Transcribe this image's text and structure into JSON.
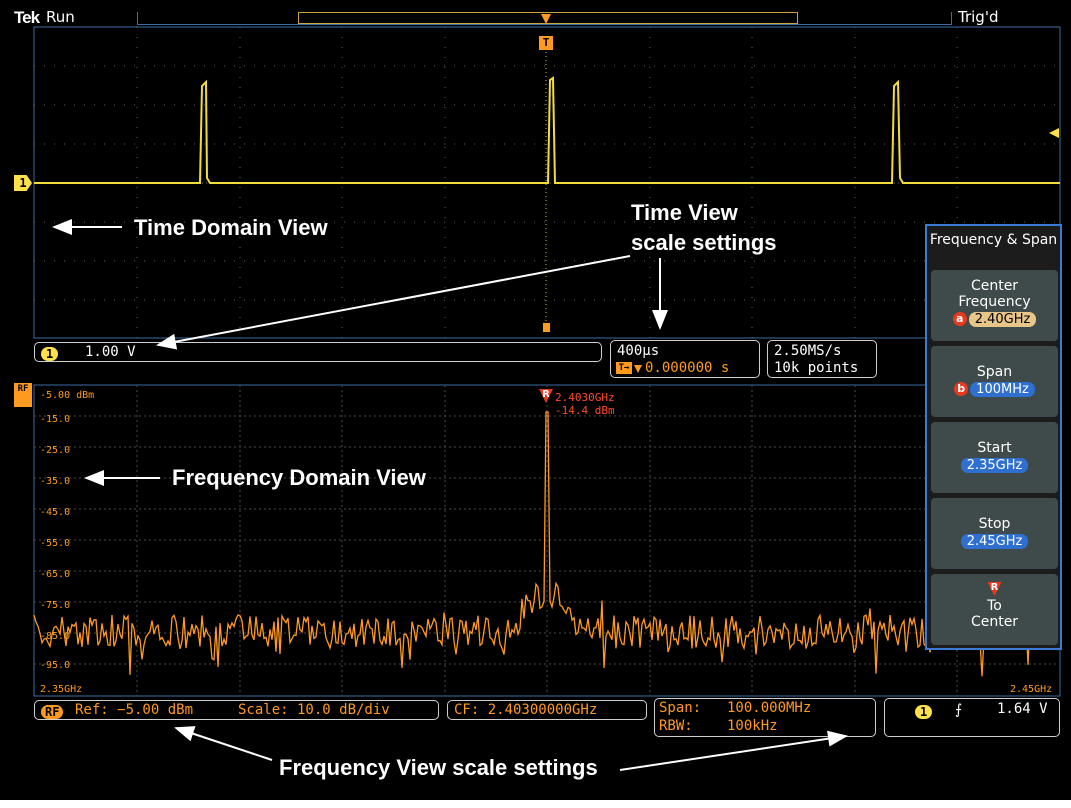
{
  "status": {
    "brand": "Tek",
    "run_state": "Run",
    "trigger_state": "Trig'd"
  },
  "time_view": {
    "channel_number": "1",
    "vertical_scale": "1.00 V",
    "timebase": "400µs",
    "trigger_position": "0.000000 s",
    "sample_rate": "2.50MS/s",
    "record_length": "10k points",
    "channel_marker": "1",
    "trigger_marker": "T"
  },
  "freq_view": {
    "rf_marker": "RF",
    "y_ticks": [
      "-5.00 dBm",
      "-15.0",
      "-25.0",
      "-35.0",
      "-45.0",
      "-55.0",
      "-65.0",
      "-75.0",
      "-85.0",
      "-95.0"
    ],
    "x_start": "2.35GHz",
    "x_stop": "2.45GHz",
    "peak_marker": "R",
    "peak_freq": "2.4030GHz",
    "peak_level": "-14.4 dBm",
    "ref_badge": "RF",
    "ref": "Ref: −5.00 dBm",
    "scale": "Scale: 10.0 dB/div",
    "cf": "CF: 2.40300000GHz",
    "span_label": "Span:",
    "span_value": "100.000MHz",
    "rbw_label": "RBW:",
    "rbw_value": "100kHz",
    "trig_channel": "1",
    "trig_level": "1.64 V"
  },
  "side_menu": {
    "title": "Frequency & Span",
    "center_frequency_label": "Center Frequency",
    "center_frequency_knob": "a",
    "center_frequency_value": "2.40GHz",
    "span_label": "Span",
    "span_knob": "b",
    "span_value": "100MHz",
    "start_label": "Start",
    "start_value": "2.35GHz",
    "stop_label": "Stop",
    "stop_value": "2.45GHz",
    "to_center_icon": "R",
    "to_center_label": "To Center"
  },
  "annotations": {
    "time_domain": "Time Domain View",
    "time_scale_line1": "Time View",
    "time_scale_line2": "scale settings",
    "freq_domain": "Frequency Domain View",
    "freq_scale": "Frequency View scale settings"
  },
  "colors": {
    "ch1": "#ffe04b",
    "rf": "#ff9a1e",
    "marker": "#e83a1f",
    "grid": "#6e6e6e",
    "menu_accent": "#3b7bd6"
  }
}
